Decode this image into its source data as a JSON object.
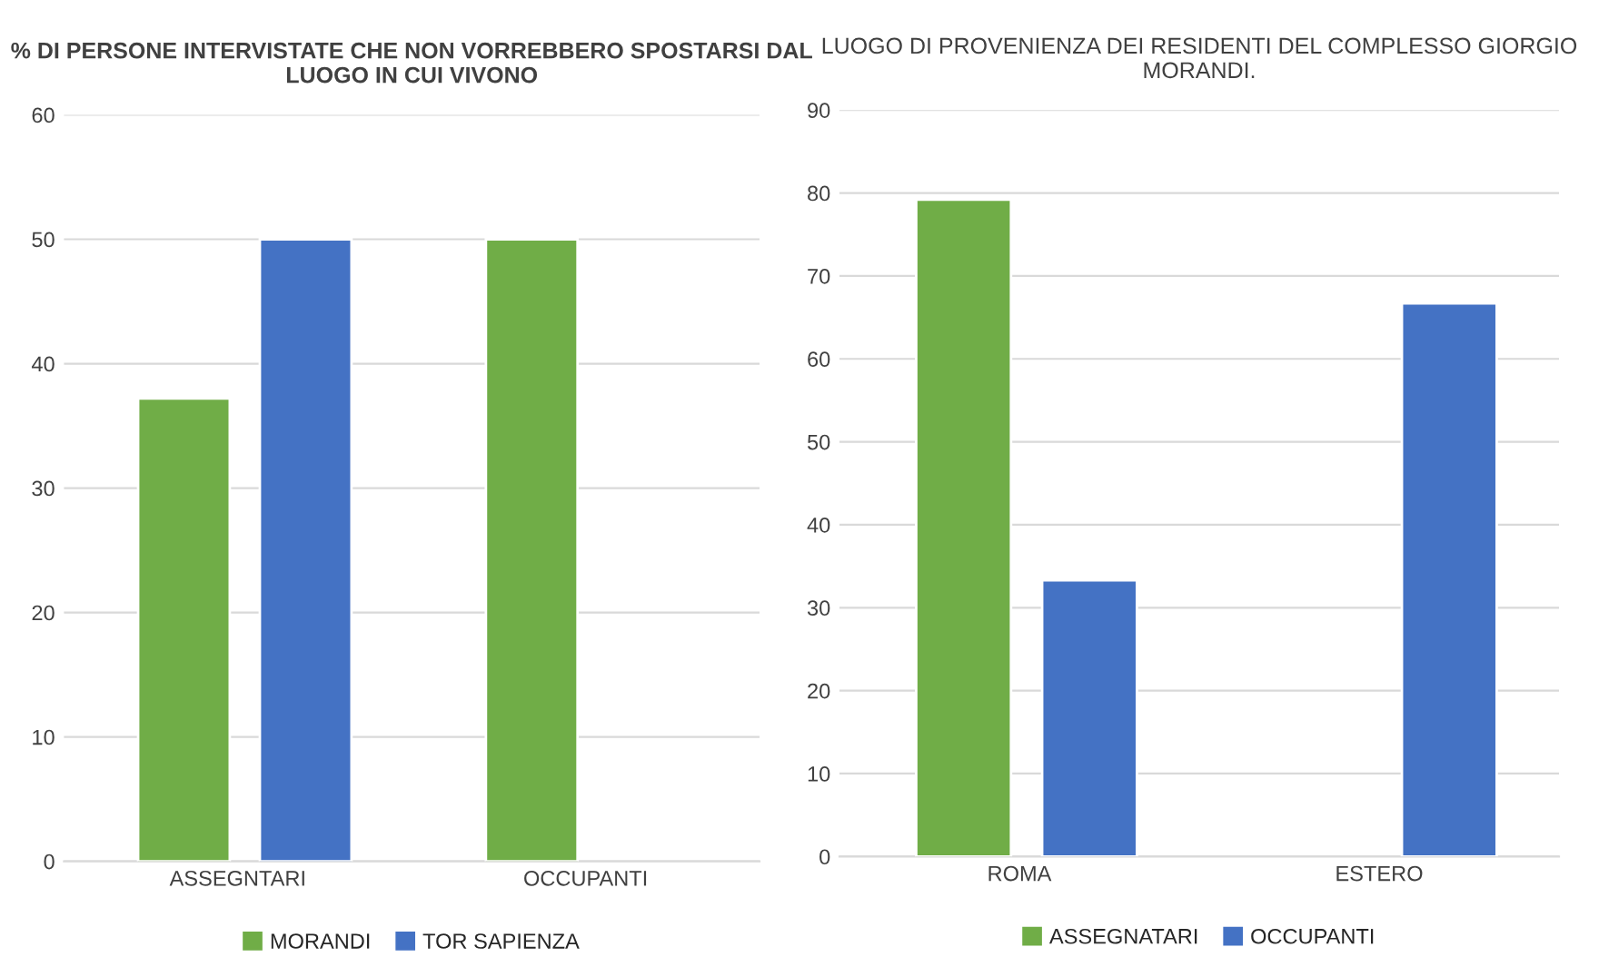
{
  "chart_data": [
    {
      "type": "bar",
      "title": "% DI PERSONE INTERVISTATE CHE NON VORREBBERO SPOSTARSI DAL LUOGO IN CUI VIVONO",
      "categories": [
        "ASSEGNTARI",
        "OCCUPANTI"
      ],
      "series": [
        {
          "name": "MORANDI",
          "color": "#70ad47",
          "values": [
            37.2,
            50
          ]
        },
        {
          "name": "TOR SAPIENZA",
          "color": "#4472c4",
          "values": [
            50,
            null
          ]
        }
      ],
      "ylim": [
        0,
        60
      ],
      "yticks": [
        0,
        10,
        20,
        30,
        40,
        50,
        60
      ],
      "grid": "y",
      "legend": "bottom"
    },
    {
      "type": "bar",
      "title": "LUOGO DI PROVENIENZA DEI RESIDENTI DEL COMPLESSO GIORGIO MORANDI.",
      "categories": [
        "ROMA",
        "ESTERO"
      ],
      "series": [
        {
          "name": "ASSEGNATARI",
          "color": "#70ad47",
          "values": [
            79.2,
            null
          ]
        },
        {
          "name": "OCCUPANTI",
          "color": "#4472c4",
          "values": [
            33.3,
            66.7
          ]
        }
      ],
      "ylim": [
        0,
        90
      ],
      "yticks": [
        0,
        10,
        20,
        30,
        40,
        50,
        60,
        70,
        80,
        90
      ],
      "grid": "y",
      "legend": "bottom"
    }
  ]
}
